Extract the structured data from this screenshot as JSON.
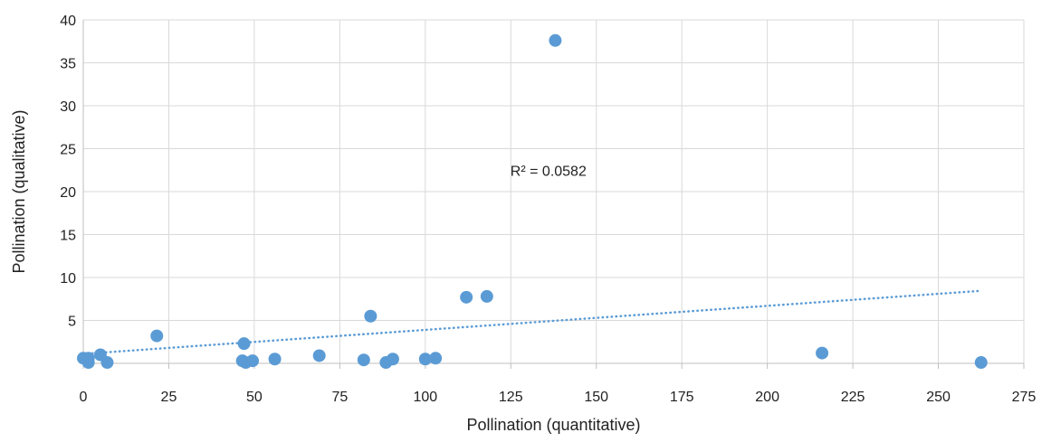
{
  "chart_data": {
    "type": "scatter",
    "xlabel": "Pollination (quantitative)",
    "ylabel": "Pollination (qualitative)",
    "xlim": [
      0,
      275
    ],
    "ylim": [
      0,
      40
    ],
    "x_ticks": [
      0,
      25,
      50,
      75,
      100,
      125,
      150,
      175,
      200,
      225,
      250,
      275
    ],
    "y_ticks": [
      5,
      10,
      15,
      20,
      25,
      30,
      35,
      40
    ],
    "grid": true,
    "legend": "none",
    "series": [
      {
        "color": "#5b9bd5",
        "points": [
          {
            "x": 0,
            "y": 0.6
          },
          {
            "x": 1.5,
            "y": 0.6
          },
          {
            "x": 1.5,
            "y": 0.1
          },
          {
            "x": 5,
            "y": 1.0
          },
          {
            "x": 7,
            "y": 0.1
          },
          {
            "x": 21.5,
            "y": 3.2
          },
          {
            "x": 47,
            "y": 2.3
          },
          {
            "x": 46.5,
            "y": 0.3
          },
          {
            "x": 47.5,
            "y": 0.1
          },
          {
            "x": 49.5,
            "y": 0.3
          },
          {
            "x": 56,
            "y": 0.5
          },
          {
            "x": 69,
            "y": 0.9
          },
          {
            "x": 82,
            "y": 0.4
          },
          {
            "x": 84,
            "y": 5.5
          },
          {
            "x": 88.5,
            "y": 0.1
          },
          {
            "x": 90.5,
            "y": 0.5
          },
          {
            "x": 100,
            "y": 0.5
          },
          {
            "x": 103,
            "y": 0.6
          },
          {
            "x": 112,
            "y": 7.7
          },
          {
            "x": 118,
            "y": 7.8
          },
          {
            "x": 138,
            "y": 37.6
          },
          {
            "x": 216,
            "y": 1.2
          },
          {
            "x": 262.5,
            "y": 0.1
          }
        ]
      }
    ],
    "trendline": {
      "type": "linear",
      "style": "dotted",
      "color": "#5b9bd5",
      "x_start": 0,
      "y_start": 1.1,
      "x_end": 262.5,
      "y_end": 8.45,
      "label": "R² = 0.0582",
      "label_x": 136,
      "label_y": 22.5
    }
  }
}
